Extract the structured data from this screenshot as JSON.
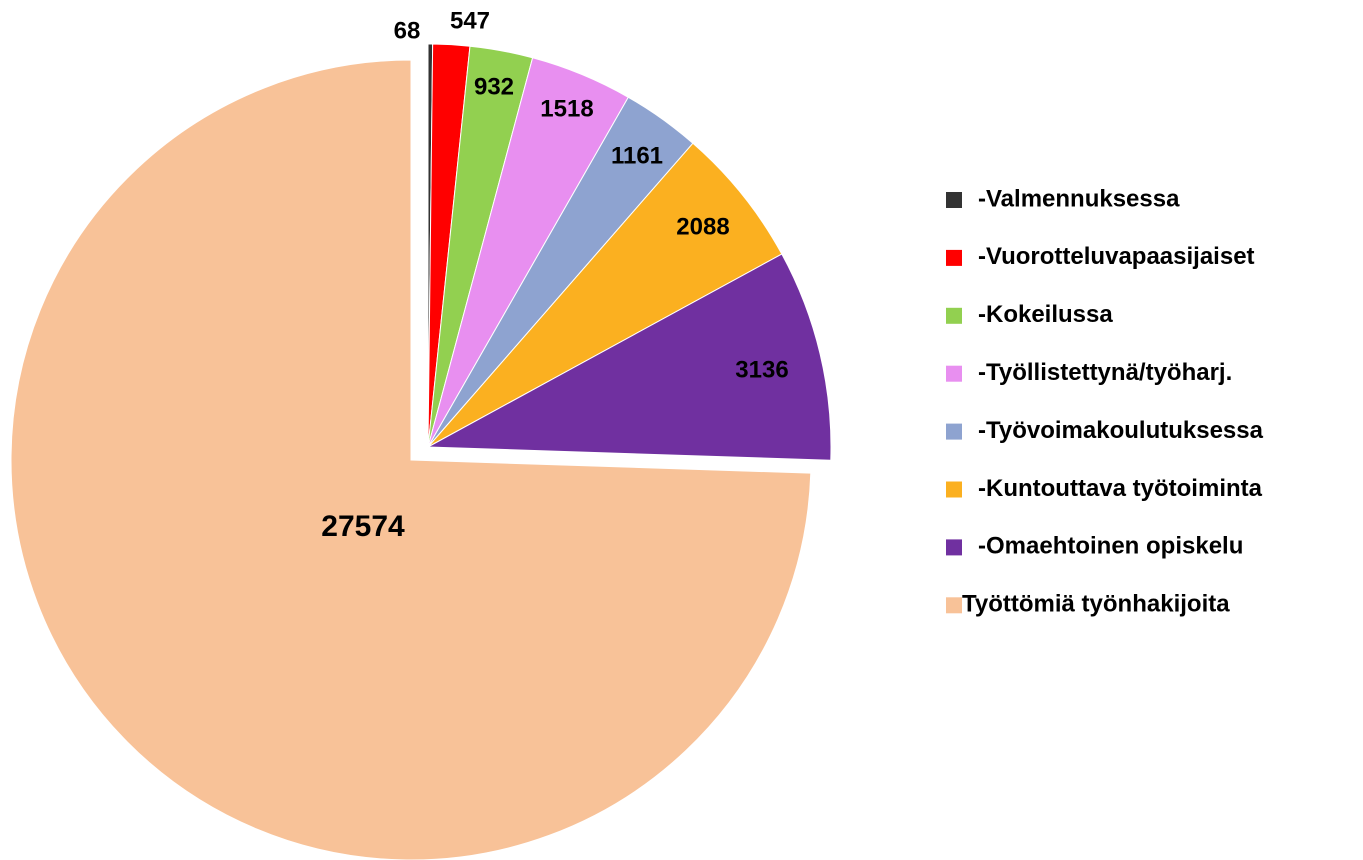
{
  "chart_data": {
    "type": "pie",
    "categories": [
      "-Valmennuksessa",
      "-Vuorotteluvapaasijaiset",
      "-Kokeilussa",
      "-Työllistettynä/työharj.",
      "-Työvoimakoulutuksessa",
      "-Kuntouttava työtoiminta",
      "-Omaehtoinen opiskelu",
      "Työttömiä työnhakijoita"
    ],
    "values": [
      68,
      547,
      932,
      1518,
      1161,
      2088,
      3136,
      27574
    ],
    "colors": [
      "#333333",
      "#ff0000",
      "#92d050",
      "#e88ff0",
      "#8ea3d0",
      "#fbb020",
      "#7030a0",
      "#f8c298"
    ],
    "legend": "right"
  }
}
